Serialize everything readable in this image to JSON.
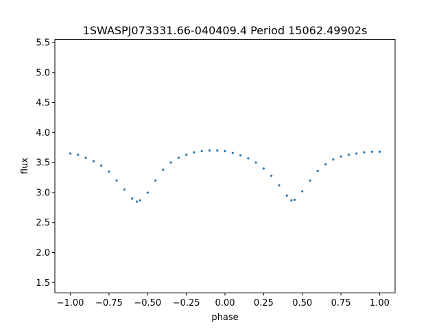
{
  "chart_data": {
    "type": "scatter",
    "title": "1SWASPJ073331.66-040409.4 Period 15062.49902s",
    "xlabel": "phase",
    "ylabel": "flux",
    "xlim": [
      -1.1,
      1.1
    ],
    "ylim": [
      1.33,
      5.55
    ],
    "xticks": [
      -1.0,
      -0.75,
      -0.5,
      -0.25,
      0.0,
      0.25,
      0.5,
      0.75,
      1.0
    ],
    "xtick_labels": [
      "−1.00",
      "−0.75",
      "−0.50",
      "−0.25",
      "0.00",
      "0.25",
      "0.50",
      "0.75",
      "1.00"
    ],
    "yticks": [
      1.5,
      2.0,
      2.5,
      3.0,
      3.5,
      4.0,
      4.5,
      5.0,
      5.5
    ],
    "ytick_labels": [
      "1.5",
      "2.0",
      "2.5",
      "3.0",
      "3.5",
      "4.0",
      "4.5",
      "5.0",
      "5.5"
    ],
    "grid": false,
    "legend": "none",
    "marker_color": "#1f77b4",
    "series": [
      {
        "x": [
          -1.0,
          -0.95,
          -0.9,
          -0.85,
          -0.8,
          -0.75,
          -0.7,
          -0.65,
          -0.6,
          -0.57,
          -0.55,
          -0.5,
          -0.45,
          -0.4,
          -0.35,
          -0.3,
          -0.25,
          -0.2,
          -0.15,
          -0.1,
          -0.05,
          0.0,
          0.05,
          0.1,
          0.15,
          0.2,
          0.25,
          0.3,
          0.35,
          0.4,
          0.43,
          0.45,
          0.5,
          0.55,
          0.6,
          0.65,
          0.7,
          0.75,
          0.8,
          0.85,
          0.9,
          0.95,
          1.0
        ],
        "y": [
          3.65,
          3.63,
          3.58,
          3.52,
          3.45,
          3.35,
          3.2,
          3.05,
          2.9,
          2.85,
          2.87,
          3.0,
          3.2,
          3.38,
          3.5,
          3.58,
          3.63,
          3.67,
          3.69,
          3.7,
          3.7,
          3.69,
          3.66,
          3.62,
          3.57,
          3.5,
          3.4,
          3.28,
          3.12,
          2.95,
          2.87,
          2.88,
          3.02,
          3.2,
          3.36,
          3.47,
          3.55,
          3.6,
          3.63,
          3.65,
          3.67,
          3.68,
          3.68
        ]
      }
    ]
  }
}
